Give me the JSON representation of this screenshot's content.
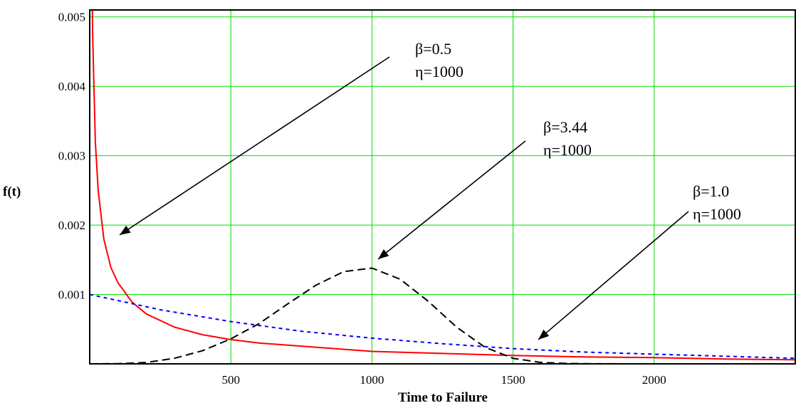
{
  "chart_data": {
    "type": "line",
    "xlabel": "Time to Failure",
    "ylabel": "f(t)",
    "xlim": [
      0,
      2500
    ],
    "ylim": [
      0,
      0.0051
    ],
    "grid": true,
    "x_ticks": [
      "500",
      "1000",
      "1500",
      "2000"
    ],
    "y_ticks": [
      "0.001",
      "0.002",
      "0.003",
      "0.004",
      "0.005"
    ],
    "series": [
      {
        "style": "solid",
        "color": "#ff0000",
        "beta": 0.5,
        "eta": 1000,
        "x": [
          5,
          10,
          20,
          30,
          50,
          75,
          100,
          150,
          200,
          300,
          400,
          500,
          600,
          800,
          1000,
          1250,
          1500,
          1750,
          2000,
          2250,
          2500
        ],
        "y": [
          0.007,
          0.0048,
          0.0032,
          0.0025,
          0.0018,
          0.00139,
          0.00117,
          0.00089,
          0.00072,
          0.00053,
          0.00042,
          0.00035,
          0.0003,
          0.00024,
          0.00018,
          0.00015,
          0.00012,
          0.0001,
          9e-05,
          7e-05,
          6e-05
        ]
      },
      {
        "style": "dashed",
        "color": "#000000",
        "beta": 3.44,
        "eta": 1000,
        "x": [
          0,
          100,
          200,
          300,
          400,
          500,
          600,
          700,
          800,
          900,
          1000,
          1100,
          1200,
          1300,
          1400,
          1500,
          1600,
          1700,
          1800,
          2000,
          2500
        ],
        "y": [
          0,
          3e-06,
          2e-05,
          8e-05,
          0.00019,
          0.00036,
          0.00058,
          0.00086,
          0.00113,
          0.00133,
          0.00138,
          0.00122,
          0.0009,
          0.00053,
          0.00024,
          8e-05,
          2e-05,
          5e-06,
          1e-06,
          0,
          0
        ]
      },
      {
        "style": "dotted",
        "color": "#0000ff",
        "beta": 1.0,
        "eta": 1000,
        "x": [
          0,
          250,
          500,
          750,
          1000,
          1250,
          1500,
          1750,
          2000,
          2250,
          2500
        ],
        "y": [
          0.001,
          0.00078,
          0.00061,
          0.00047,
          0.00037,
          0.00029,
          0.00022,
          0.00017,
          0.00014,
          0.00011,
          8e-05
        ]
      }
    ],
    "annotations": [
      {
        "beta_label": "β=0.5",
        "eta_label": "η=1000"
      },
      {
        "beta_label": "β=3.44",
        "eta_label": "η=1000"
      },
      {
        "beta_label": "β=1.0",
        "eta_label": "η=1000"
      }
    ]
  }
}
